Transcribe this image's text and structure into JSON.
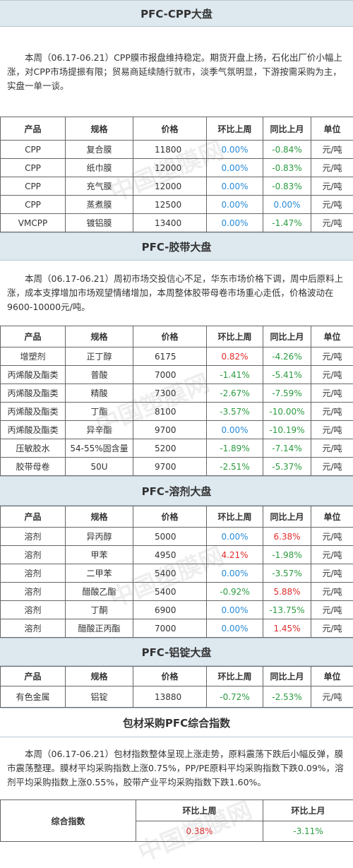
{
  "watermark": "中国塑膜网",
  "sections": [
    {
      "title": "PFC-CPP大盘",
      "paragraph": "本周（06.17-06.21）CPP膜市报盘维持稳定。期货开盘上扬，石化出厂价小幅上涨，对CPP市场提振有限；贸易商延续随行就市，淡季气氛明显，下游按需采购为主，实盘一单一谈。",
      "table": {
        "header": [
          "产品",
          "规格",
          "价格",
          "环比上周",
          "同比上月",
          "单位"
        ],
        "rows": [
          [
            "CPP",
            "复合膜",
            11800,
            "0.00%",
            "-0.84%",
            "元/吨"
          ],
          [
            "CPP",
            "纸巾膜",
            12000,
            "0.00%",
            "-0.83%",
            "元/吨"
          ],
          [
            "CPP",
            "充气膜",
            12000,
            "0.00%",
            "-0.83%",
            "元/吨"
          ],
          [
            "CPP",
            "蒸煮膜",
            12500,
            "0.00%",
            "0.00%",
            "元/吨"
          ],
          [
            "VMCPP",
            "镀铝膜",
            13400,
            "0.00%",
            "-1.47%",
            "元/吨"
          ]
        ]
      }
    },
    {
      "title": "PFC-胶带大盘",
      "paragraph": "本周（06.17-06.21）周初市场交投信心不足，华东市场价格下调，周中后原料上涨，成本支撑增加市场观望情绪增加，本周整体胶带母卷市场重心走低，价格波动在9600-10000元/吨。",
      "table": {
        "header": [
          "产品",
          "规格",
          "价格",
          "环比上周",
          "同比上月",
          "单位"
        ],
        "rows": [
          [
            "增塑剂",
            "正丁醇",
            6175,
            "0.82%",
            "-4.26%",
            "元/吨"
          ],
          [
            "丙烯酸及酯类",
            "普酸",
            7000,
            "-1.41%",
            "-5.41%",
            "元/吨"
          ],
          [
            "丙烯酸及酯类",
            "精酸",
            7300,
            "-2.67%",
            "-7.59%",
            "元/吨"
          ],
          [
            "丙烯酸及酯类",
            "丁酯",
            8100,
            "-3.57%",
            "-10.00%",
            "元/吨"
          ],
          [
            "丙烯酸及酯类",
            "异辛酯",
            9700,
            "0.00%",
            "-10.19%",
            "元/吨"
          ],
          [
            "压敏胶水",
            "54-55%固含量",
            5200,
            "-1.89%",
            "-7.14%",
            "元/吨"
          ],
          [
            "胶带母卷",
            "50U",
            9700,
            "-2.51%",
            "-5.37%",
            "元/吨"
          ]
        ]
      }
    },
    {
      "title": "PFC-溶剂大盘",
      "table": {
        "header": [
          "产品",
          "规格",
          "价格",
          "环比上周",
          "同比上月",
          "单位"
        ],
        "rows": [
          [
            "溶剂",
            "异丙醇",
            5000,
            "0.00%",
            "6.38%",
            "元/吨"
          ],
          [
            "溶剂",
            "甲苯",
            4950,
            "4.21%",
            "-1.98%",
            "元/吨"
          ],
          [
            "溶剂",
            "二甲苯",
            5400,
            "0.00%",
            "-3.57%",
            "元/吨"
          ],
          [
            "溶剂",
            "醋酸乙酯",
            5400,
            "-0.92%",
            "5.88%",
            "元/吨"
          ],
          [
            "溶剂",
            "丁酮",
            6900,
            "0.00%",
            "-13.75%",
            "元/吨"
          ],
          [
            "溶剂",
            "醋酸正丙酯",
            7000,
            "0.00%",
            "1.45%",
            "元/吨"
          ]
        ]
      }
    },
    {
      "title": "PFC-铝锭大盘",
      "table": {
        "header": [
          "产品",
          "规格",
          "价格",
          "环比上周",
          "同比上月",
          "单位"
        ],
        "rows": [
          [
            "有色金属",
            "铝锭",
            13880,
            "-0.72%",
            "-2.53%",
            "元/吨"
          ]
        ]
      }
    }
  ],
  "index": {
    "title": "包材采购PFC综合指数",
    "paragraph": "本周（06.17-06.21）包材指数整体呈现上涨走势，原料震荡下跌后小幅反弹，膜市震荡整理。膜材平均采购指数上涨0.75%，PP/PE原料平均采购指数下跌0.09%，溶剂平均采购指数上涨0.55%，胶带产业平均采购指数下跌1.60%。",
    "label": "综合指数",
    "header": [
      "环比上周",
      "环比上月"
    ],
    "values": [
      "0.38%",
      "-3.11%"
    ]
  }
}
